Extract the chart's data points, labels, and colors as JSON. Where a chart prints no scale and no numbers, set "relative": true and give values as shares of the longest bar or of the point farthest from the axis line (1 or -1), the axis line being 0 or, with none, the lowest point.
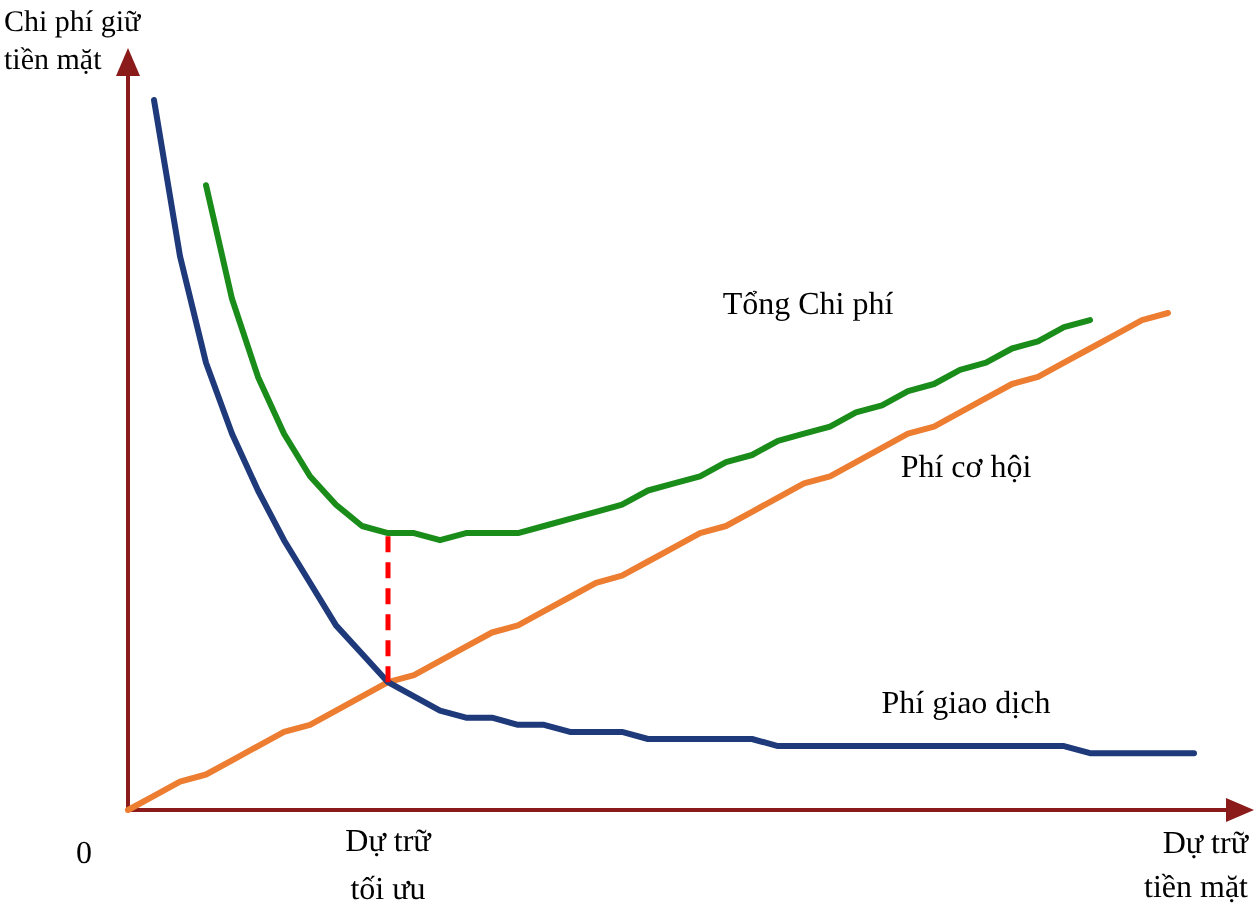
{
  "chart_data": {
    "type": "line",
    "relative": true,
    "xlabel": "Dự trữ tiền mặt",
    "ylabel": "Chi phí giữ tiền mặt",
    "categories": [
      null,
      null,
      null,
      null,
      null,
      null,
      null,
      null,
      null,
      null,
      null,
      null,
      null,
      null,
      null,
      null,
      null,
      null,
      null,
      null,
      null,
      null,
      null,
      null,
      null,
      null,
      null,
      null,
      null,
      null,
      null,
      null,
      null,
      null,
      null,
      null,
      null,
      null,
      null,
      null,
      null,
      null,
      null,
      null
    ],
    "series": [
      {
        "name": "Tổng Chi phí",
        "color": "#1a8c1a",
        "values": [
          null,
          null,
          null,
          0.88,
          0.72,
          0.61,
          0.53,
          0.47,
          0.43,
          0.4,
          0.39,
          0.39,
          0.38,
          0.39,
          0.39,
          0.39,
          0.4,
          0.41,
          0.42,
          0.43,
          0.45,
          0.46,
          0.47,
          0.49,
          0.5,
          0.52,
          0.53,
          0.54,
          0.56,
          0.57,
          0.59,
          0.6,
          0.62,
          0.63,
          0.65,
          0.66,
          0.68,
          0.69,
          null,
          null,
          null,
          null,
          null,
          null
        ]
      },
      {
        "name": "Phí cơ hội",
        "color": "#ed7d31",
        "values": [
          0,
          0.02,
          0.04,
          0.05,
          0.07,
          0.09,
          0.11,
          0.12,
          0.14,
          0.16,
          0.18,
          0.19,
          0.21,
          0.23,
          0.25,
          0.26,
          0.28,
          0.3,
          0.32,
          0.33,
          0.35,
          0.37,
          0.39,
          0.4,
          0.42,
          0.44,
          0.46,
          0.47,
          0.49,
          0.51,
          0.53,
          0.54,
          0.56,
          0.58,
          0.6,
          0.61,
          0.63,
          0.65,
          0.67,
          0.69,
          0.7,
          null,
          null,
          null
        ]
      },
      {
        "name": "Phí giao dịch",
        "color": "#1f3a7a",
        "values": [
          null,
          1.0,
          0.78,
          0.63,
          0.53,
          0.45,
          0.38,
          0.32,
          0.26,
          0.22,
          0.18,
          0.16,
          0.14,
          0.13,
          0.13,
          0.12,
          0.12,
          0.11,
          0.11,
          0.11,
          0.1,
          0.1,
          0.1,
          0.1,
          0.1,
          0.09,
          0.09,
          0.09,
          0.09,
          0.09,
          0.09,
          0.09,
          0.09,
          0.09,
          0.09,
          0.09,
          0.09,
          0.08,
          0.08,
          0.08,
          0.08,
          0.08,
          null,
          null
        ]
      }
    ],
    "annotations": [
      "0",
      "Dự trữ tối ưu"
    ],
    "marker": "none",
    "grid": false,
    "legend": false
  }
}
